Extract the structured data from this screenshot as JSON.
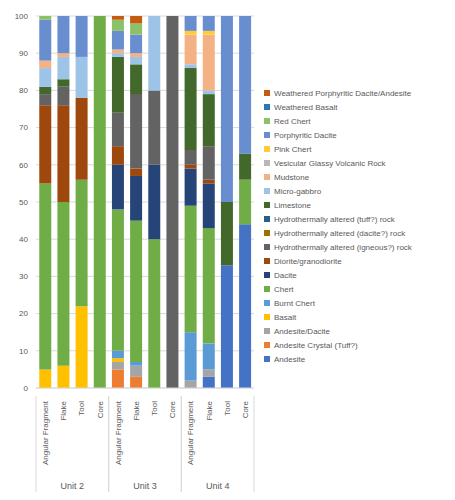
{
  "chart_data": {
    "type": "bar",
    "stacked": true,
    "grid": true,
    "legend": "right",
    "x_groups": [
      {
        "label": "Unit 2",
        "categories": [
          "Angular Fragment",
          "Flake",
          "Tool",
          "Core"
        ]
      },
      {
        "label": "Unit 3",
        "categories": [
          "Angular Fragment",
          "Flake",
          "Tool",
          "Core"
        ]
      },
      {
        "label": "Unit 4",
        "categories": [
          "Angular Fragment",
          "Flake",
          "Tool",
          "Core"
        ]
      }
    ],
    "ylim": [
      0,
      100
    ],
    "yticks": [
      0,
      10,
      20,
      30,
      40,
      50,
      60,
      70,
      80,
      90,
      100
    ],
    "series": [
      {
        "name": "Andesite",
        "color": "#4472c4",
        "values": [
          0,
          0,
          0,
          0,
          0,
          0,
          0,
          0,
          0,
          3,
          33,
          44
        ]
      },
      {
        "name": "Andesite Crystal (Tuff?)",
        "color": "#ed7d31",
        "values": [
          0,
          0,
          0,
          0,
          5,
          3,
          0,
          0,
          0,
          0,
          0,
          0
        ]
      },
      {
        "name": "Andesite/Dacite",
        "color": "#a5a5a5",
        "values": [
          0,
          0,
          0,
          0,
          2,
          3,
          0,
          0,
          2,
          2,
          0,
          0
        ]
      },
      {
        "name": "Basalt",
        "color": "#ffc000",
        "values": [
          5,
          6,
          22,
          0,
          1,
          0,
          0,
          0,
          0,
          0,
          0,
          0
        ]
      },
      {
        "name": "Burnt Chert",
        "color": "#5b9bd5",
        "values": [
          0,
          0,
          0,
          0,
          2,
          1,
          0,
          0,
          13,
          7,
          0,
          0
        ]
      },
      {
        "name": "Chert",
        "color": "#70ad47",
        "values": [
          50,
          44,
          34,
          100,
          38,
          38,
          40,
          0,
          34,
          31,
          0,
          12
        ]
      },
      {
        "name": "Dacite",
        "color": "#264478",
        "values": [
          0,
          0,
          0,
          0,
          12,
          12,
          20,
          0,
          10,
          12,
          0,
          0
        ]
      },
      {
        "name": "Diorite/granodiorite",
        "color": "#9e480e",
        "values": [
          21,
          26,
          22,
          0,
          5,
          2,
          0,
          0,
          1,
          1,
          0,
          0
        ]
      },
      {
        "name": "Hydrothermally altered (igneous?) rock",
        "color": "#636363",
        "values": [
          3,
          5,
          0,
          0,
          9,
          20,
          20,
          100,
          4,
          9,
          0,
          0
        ]
      },
      {
        "name": "Hydrothermally altered (dacite?) rock",
        "color": "#997300",
        "values": [
          0,
          0,
          0,
          0,
          0,
          0,
          0,
          0,
          0,
          0,
          0,
          0
        ]
      },
      {
        "name": "Hydrothermally altered (tuff?) rock",
        "color": "#255e91",
        "values": [
          0,
          0,
          0,
          0,
          0,
          0,
          0,
          0,
          0,
          0,
          0,
          0
        ]
      },
      {
        "name": "Limestone",
        "color": "#43682b",
        "values": [
          2,
          2,
          0,
          0,
          15,
          8,
          0,
          0,
          22,
          14,
          17,
          7
        ]
      },
      {
        "name": "Micro-gabbro",
        "color": "#9dc3e6",
        "values": [
          5,
          6,
          11,
          0,
          1,
          2,
          20,
          0,
          1,
          1,
          0,
          0
        ]
      },
      {
        "name": "Mudstone",
        "color": "#f4b183",
        "values": [
          2,
          1,
          0,
          0,
          1,
          1,
          0,
          0,
          8,
          15,
          0,
          0
        ]
      },
      {
        "name": "Vesicular Glassy Volcanic Rock",
        "color": "#b7b7b7",
        "values": [
          0,
          0,
          0,
          0,
          0,
          0,
          0,
          0,
          0,
          0,
          0,
          0
        ]
      },
      {
        "name": "Pink Chert",
        "color": "#ffcd33",
        "values": [
          0,
          0,
          0,
          0,
          0,
          0,
          0,
          0,
          1,
          1,
          0,
          0
        ]
      },
      {
        "name": "Porphyritic Dacite",
        "color": "#698ed0",
        "values": [
          11,
          10,
          11,
          0,
          5,
          5,
          0,
          0,
          4,
          4,
          50,
          37
        ]
      },
      {
        "name": "Red Chert",
        "color": "#8cc168",
        "values": [
          1,
          0,
          0,
          0,
          3,
          3,
          0,
          0,
          0,
          0,
          0,
          0
        ]
      },
      {
        "name": "Weathered Basalt",
        "color": "#2e75b6",
        "values": [
          0,
          0,
          0,
          0,
          0,
          0,
          0,
          0,
          0,
          0,
          0,
          0
        ]
      },
      {
        "name": "Weathered Porphyritic Dacite/Andesite",
        "color": "#c55a11",
        "values": [
          0,
          0,
          0,
          0,
          1,
          2,
          0,
          0,
          0,
          0,
          0,
          0
        ]
      }
    ]
  }
}
